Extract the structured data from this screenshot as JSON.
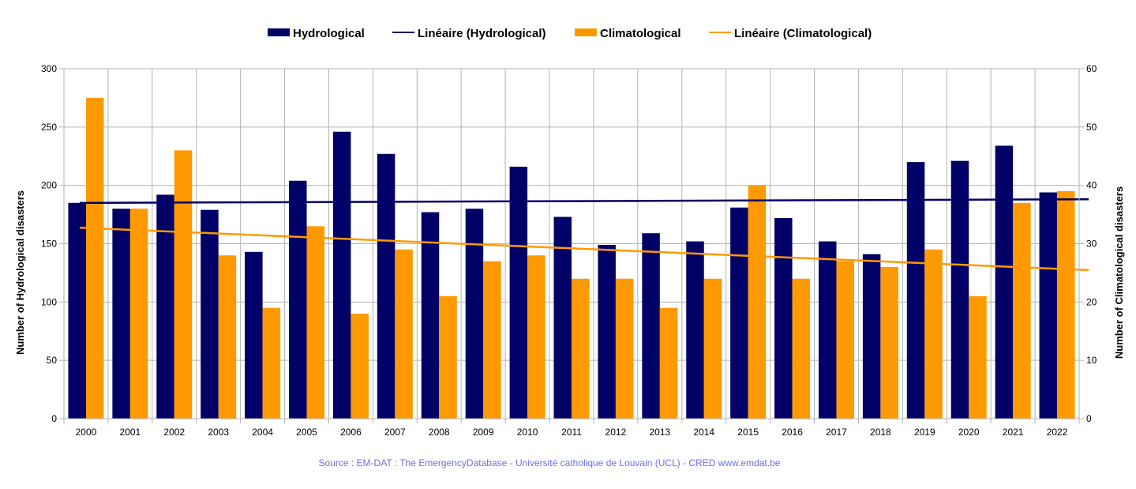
{
  "chart_data": {
    "type": "bar",
    "categories": [
      "2000",
      "2001",
      "2002",
      "2003",
      "2004",
      "2005",
      "2006",
      "2007",
      "2008",
      "2009",
      "2010",
      "2011",
      "2012",
      "2013",
      "2014",
      "2015",
      "2016",
      "2017",
      "2018",
      "2019",
      "2020",
      "2021",
      "2022"
    ],
    "series": [
      {
        "name": "Hydrological",
        "axis": "left",
        "color": "#000066",
        "values": [
          185,
          180,
          192,
          179,
          143,
          204,
          246,
          227,
          177,
          180,
          216,
          173,
          149,
          159,
          152,
          181,
          172,
          152,
          141,
          220,
          221,
          234,
          194
        ]
      },
      {
        "name": "Climatological",
        "axis": "right",
        "color": "#ff9900",
        "values": [
          55,
          36,
          46,
          28,
          19,
          33,
          18,
          29,
          21,
          27,
          28,
          24,
          24,
          19,
          24,
          40,
          24,
          27,
          26,
          29,
          21,
          37,
          39
        ]
      }
    ],
    "trendlines": [
      {
        "name": "Linéaire (Hydrological)",
        "series": "Hydrological",
        "axis": "left",
        "color": "#000066",
        "start": 185,
        "end": 188
      },
      {
        "name": "Linéaire (Climatological)",
        "series": "Climatological",
        "axis": "right",
        "color": "#ff9900",
        "start": 32.7,
        "end": 25.7
      }
    ],
    "ylabel": "Number of Hydrological disasters",
    "y2label": "Number of Climatological disasters",
    "ylim": [
      0,
      300
    ],
    "y2lim": [
      0,
      60
    ],
    "yticks": [
      "0",
      "50",
      "100",
      "150",
      "200",
      "250",
      "300"
    ],
    "y2ticks": [
      "0",
      "10",
      "20",
      "30",
      "40",
      "50",
      "60"
    ],
    "grid": true,
    "legend_position": "top-center",
    "source": "Source : EM-DAT : The EmergencyDatabase - Université catholique de Louvain (UCL) - CRED  www.emdat.be"
  }
}
